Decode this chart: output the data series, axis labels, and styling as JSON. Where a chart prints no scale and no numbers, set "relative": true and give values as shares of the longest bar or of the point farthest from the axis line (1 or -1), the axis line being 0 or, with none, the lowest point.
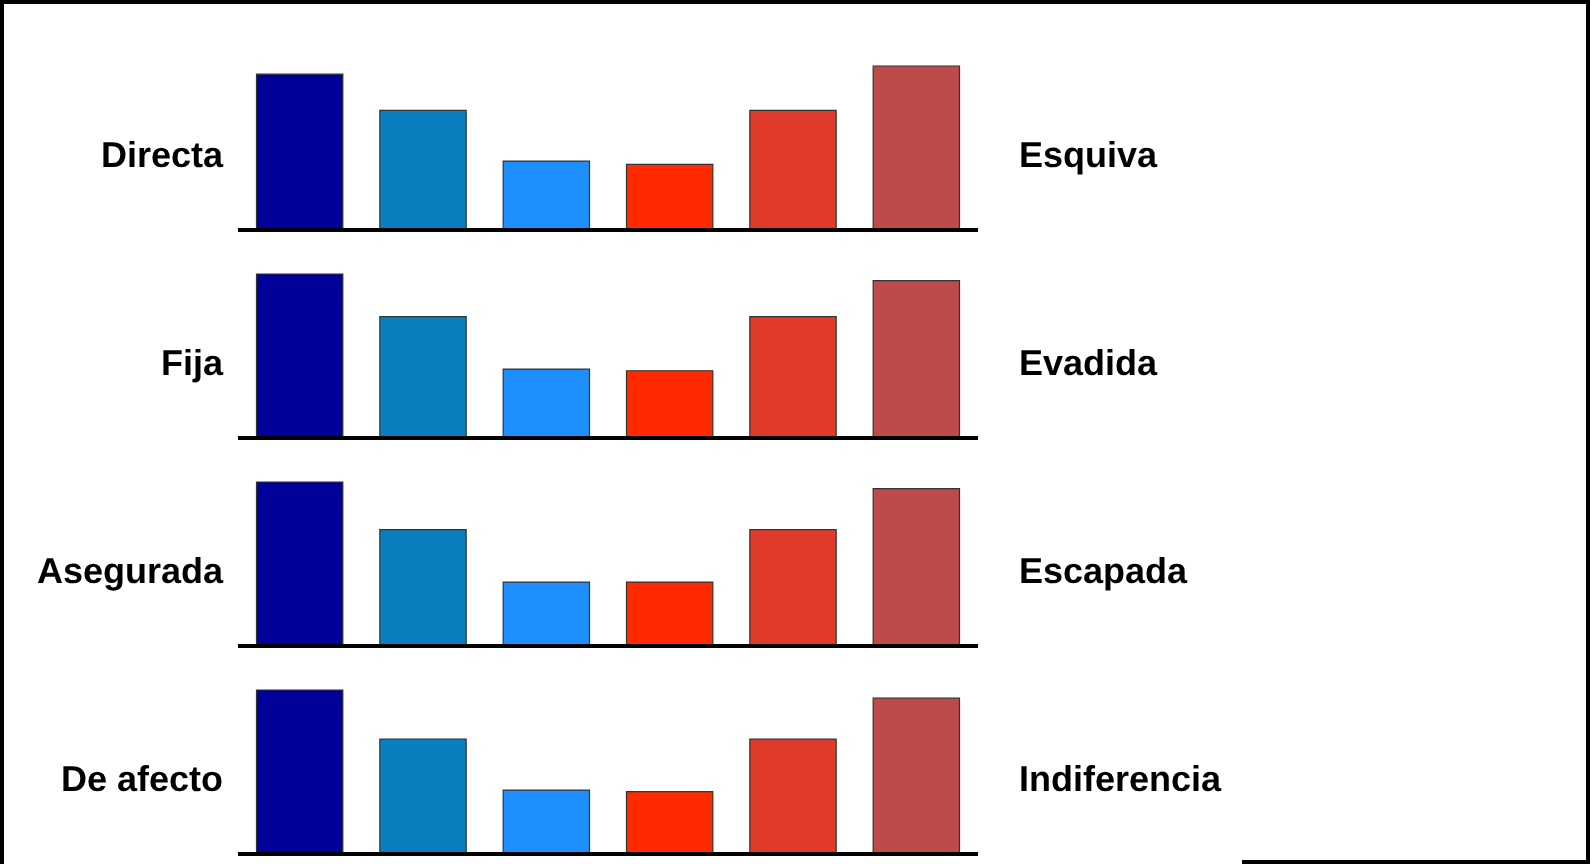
{
  "chart_data": [
    {
      "type": "bar",
      "relative": true,
      "ylabel": "Directa",
      "y2label": "Esquiva",
      "categories": [
        null,
        null,
        null,
        null,
        null,
        null
      ],
      "values": [
        0.95,
        0.73,
        0.42,
        0.4,
        0.73,
        1
      ],
      "colors": [
        "#000099",
        "#0a7fbf",
        "#1e8fff",
        "#ff2a00",
        "#e03a2a",
        "#bf4a4a"
      ]
    },
    {
      "type": "bar",
      "relative": true,
      "ylabel": "Fija",
      "y2label": "Evadida",
      "categories": [
        null,
        null,
        null,
        null,
        null,
        null
      ],
      "values": [
        1,
        0.74,
        0.42,
        0.41,
        0.74,
        0.96
      ],
      "colors": [
        "#000099",
        "#0a7fbf",
        "#1e8fff",
        "#ff2a00",
        "#e03a2a",
        "#bf4a4a"
      ]
    },
    {
      "type": "bar",
      "relative": true,
      "ylabel": "Asegurada",
      "y2label": "Escapada",
      "categories": [
        null,
        null,
        null,
        null,
        null,
        null
      ],
      "values": [
        1,
        0.71,
        0.39,
        0.39,
        0.71,
        0.96
      ],
      "colors": [
        "#000099",
        "#0a7fbf",
        "#1e8fff",
        "#ff2a00",
        "#e03a2a",
        "#bf4a4a"
      ]
    },
    {
      "type": "bar",
      "relative": true,
      "ylabel": "De afecto",
      "y2label": "Indiferencia",
      "categories": [
        null,
        null,
        null,
        null,
        null,
        null
      ],
      "values": [
        1,
        0.7,
        0.39,
        0.38,
        0.7,
        0.95
      ],
      "colors": [
        "#000099",
        "#0a7fbf",
        "#1e8fff",
        "#ff2a00",
        "#e03a2a",
        "#bf4a4a"
      ]
    }
  ]
}
